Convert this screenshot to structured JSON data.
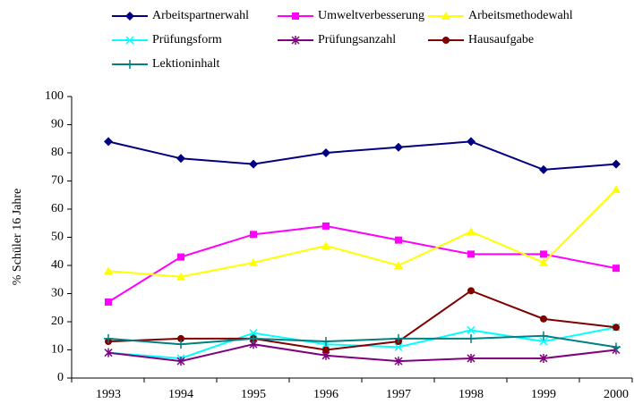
{
  "chart_data": {
    "type": "line",
    "categories": [
      "1993",
      "1994",
      "1995",
      "1996",
      "1997",
      "1998",
      "1999",
      "2000"
    ],
    "ylabel": "% Schüler 16 Jahre",
    "ylim": [
      0,
      100
    ],
    "yticks": [
      0,
      10,
      20,
      30,
      40,
      50,
      60,
      70,
      80,
      90,
      100
    ],
    "series": [
      {
        "name": "Arbeitspartnerwahl",
        "color": "#000080",
        "marker": "diamond",
        "values": [
          84,
          78,
          76,
          80,
          82,
          84,
          74,
          76
        ]
      },
      {
        "name": "Umweltverbesserung",
        "color": "#ff00ff",
        "marker": "square",
        "values": [
          27,
          43,
          51,
          54,
          49,
          44,
          44,
          39
        ]
      },
      {
        "name": "Arbeitsmethodewahl",
        "color": "#ffff00",
        "marker": "triangle",
        "values": [
          38,
          36,
          41,
          47,
          40,
          52,
          41,
          67
        ]
      },
      {
        "name": "Prüfungsform",
        "color": "#00ffff",
        "marker": "x",
        "values": [
          9,
          7,
          16,
          12,
          11,
          17,
          13,
          18
        ]
      },
      {
        "name": "Prüfungsanzahl",
        "color": "#800080",
        "marker": "star",
        "values": [
          9,
          6,
          12,
          8,
          6,
          7,
          7,
          10
        ]
      },
      {
        "name": "Hausaufgabe",
        "color": "#800000",
        "marker": "circle",
        "values": [
          13,
          14,
          14,
          10,
          13,
          31,
          21,
          18
        ]
      },
      {
        "name": "Lektioninhalt",
        "color": "#008080",
        "marker": "plus",
        "values": [
          14,
          12,
          14,
          13,
          14,
          14,
          15,
          11
        ]
      }
    ]
  }
}
